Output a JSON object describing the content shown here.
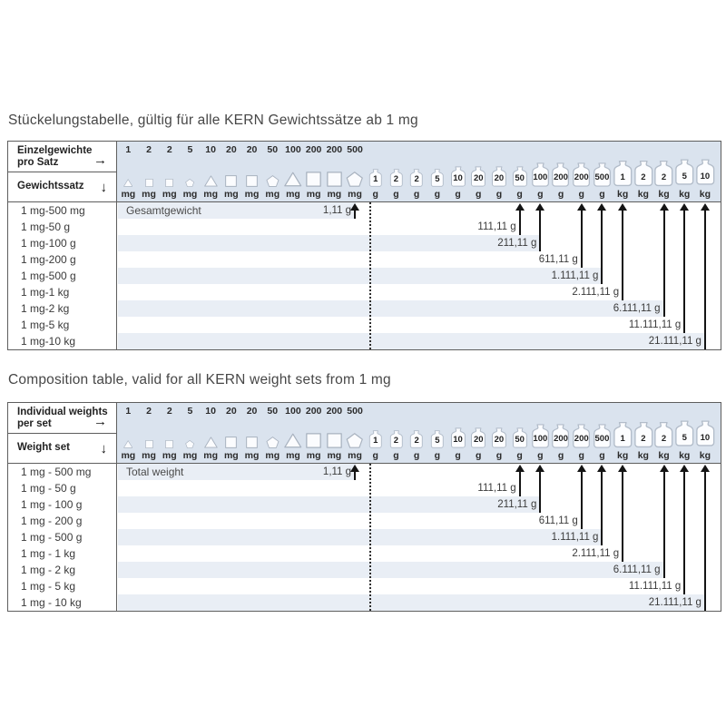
{
  "titles": {
    "de": "Stückelungstabelle, gültig für alle KERN Gewichtssätze ab 1 mg",
    "en": "Composition table, valid for all KERN weight sets from 1 mg"
  },
  "columns": [
    {
      "value": "1",
      "unit": "mg",
      "icon": "triangle",
      "tier": "s1"
    },
    {
      "value": "2",
      "unit": "mg",
      "icon": "square",
      "tier": "s1"
    },
    {
      "value": "2",
      "unit": "mg",
      "icon": "square",
      "tier": "s1"
    },
    {
      "value": "5",
      "unit": "mg",
      "icon": "pentagon",
      "tier": "s1"
    },
    {
      "value": "10",
      "unit": "mg",
      "icon": "triangle",
      "tier": "s2"
    },
    {
      "value": "20",
      "unit": "mg",
      "icon": "square",
      "tier": "s2"
    },
    {
      "value": "20",
      "unit": "mg",
      "icon": "square",
      "tier": "s2"
    },
    {
      "value": "50",
      "unit": "mg",
      "icon": "pentagon",
      "tier": "s2"
    },
    {
      "value": "100",
      "unit": "mg",
      "icon": "triangle",
      "tier": "s3"
    },
    {
      "value": "200",
      "unit": "mg",
      "icon": "square",
      "tier": "s3"
    },
    {
      "value": "200",
      "unit": "mg",
      "icon": "square",
      "tier": "s3"
    },
    {
      "value": "500",
      "unit": "mg",
      "icon": "pentagon",
      "tier": "s3"
    },
    {
      "value": "1",
      "unit": "g",
      "icon": "weight",
      "tier": "b1"
    },
    {
      "value": "2",
      "unit": "g",
      "icon": "weight",
      "tier": "b1"
    },
    {
      "value": "2",
      "unit": "g",
      "icon": "weight",
      "tier": "b1"
    },
    {
      "value": "5",
      "unit": "g",
      "icon": "weight",
      "tier": "b1"
    },
    {
      "value": "10",
      "unit": "g",
      "icon": "weight",
      "tier": "b2"
    },
    {
      "value": "20",
      "unit": "g",
      "icon": "weight",
      "tier": "b2"
    },
    {
      "value": "20",
      "unit": "g",
      "icon": "weight",
      "tier": "b2"
    },
    {
      "value": "50",
      "unit": "g",
      "icon": "weight",
      "tier": "b2"
    },
    {
      "value": "100",
      "unit": "g",
      "icon": "weight",
      "tier": "b3"
    },
    {
      "value": "200",
      "unit": "g",
      "icon": "weight",
      "tier": "b3"
    },
    {
      "value": "200",
      "unit": "g",
      "icon": "weight",
      "tier": "b3"
    },
    {
      "value": "500",
      "unit": "g",
      "icon": "weight",
      "tier": "b3"
    },
    {
      "value": "1",
      "unit": "kg",
      "icon": "weight",
      "tier": "b4"
    },
    {
      "value": "2",
      "unit": "kg",
      "icon": "weight",
      "tier": "b4"
    },
    {
      "value": "2",
      "unit": "kg",
      "icon": "weight",
      "tier": "b4"
    },
    {
      "value": "5",
      "unit": "kg",
      "icon": "weight",
      "tier": "b5"
    },
    {
      "value": "10",
      "unit": "kg",
      "icon": "weight",
      "tier": "b5"
    }
  ],
  "tables": [
    {
      "lang": "de",
      "header": {
        "row_label_line1": "Einzelgewichte",
        "row_label_line2": "pro Satz",
        "row_arrow": "→",
        "col_label": "Gewichtssatz",
        "col_arrow": "↓"
      },
      "total_label": "Gesamtgewicht",
      "rows": [
        {
          "set": "1 mg-500 mg",
          "total": "1,11 g",
          "target_col": 11
        },
        {
          "set": "1 mg-50 g",
          "total": "111,11 g",
          "target_col": 19
        },
        {
          "set": "1 mg-100 g",
          "total": "211,11 g",
          "target_col": 20
        },
        {
          "set": "1 mg-200 g",
          "total": "611,11 g",
          "target_col": 22
        },
        {
          "set": "1 mg-500 g",
          "total": "1.111,11 g",
          "target_col": 23
        },
        {
          "set": "1 mg-1 kg",
          "total": "2.111,11 g",
          "target_col": 24
        },
        {
          "set": "1 mg-2 kg",
          "total": "6.111,11 g",
          "target_col": 26
        },
        {
          "set": "1 mg-5 kg",
          "total": "11.111,11 g",
          "target_col": 27
        },
        {
          "set": "1 mg-10 kg",
          "total": "21.111,11 g",
          "target_col": 28
        }
      ]
    },
    {
      "lang": "en",
      "header": {
        "row_label_line1": "Individual weights",
        "row_label_line2": "per set",
        "row_arrow": "→",
        "col_label": "Weight set",
        "col_arrow": "↓"
      },
      "total_label": "Total weight",
      "rows": [
        {
          "set": "1 mg - 500 mg",
          "total": "1,11 g",
          "target_col": 11
        },
        {
          "set": "1 mg - 50 g",
          "total": "111,11 g",
          "target_col": 19
        },
        {
          "set": "1 mg - 100 g",
          "total": "211,11 g",
          "target_col": 20
        },
        {
          "set": "1 mg - 200 g",
          "total": "611,11 g",
          "target_col": 22
        },
        {
          "set": "1 mg - 500 g",
          "total": "1.111,11 g",
          "target_col": 23
        },
        {
          "set": "1 mg - 1 kg",
          "total": "2.111,11 g",
          "target_col": 24
        },
        {
          "set": "1 mg - 2 kg",
          "total": "6.111,11 g",
          "target_col": 26
        },
        {
          "set": "1 mg - 5 kg",
          "total": "11.111,11 g",
          "target_col": 27
        },
        {
          "set": "1 mg - 10 kg",
          "total": "21.111,11 g",
          "target_col": 28
        }
      ]
    }
  ],
  "colors": {
    "header_bg": "#dae3ee",
    "stripe": "#e9eef5",
    "border": "#5e5e5e",
    "arrow": "#141414",
    "shape_fill": "#fbfcfe",
    "shape_stroke": "#a8b2bf"
  }
}
